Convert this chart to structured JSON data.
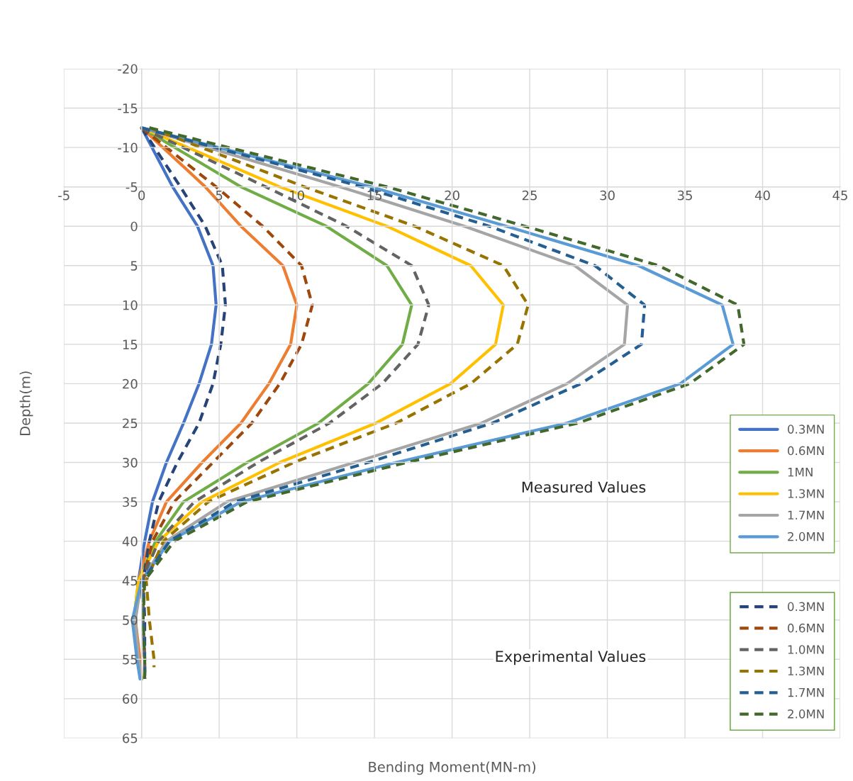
{
  "chart_data": {
    "type": "line",
    "xlabel": "Bending Moment(MN-m)",
    "ylabel": "Depth(m)",
    "xlim": [
      -5,
      45
    ],
    "xticks": [
      -5,
      0,
      5,
      10,
      15,
      20,
      25,
      30,
      35,
      40,
      45
    ],
    "ylim": [
      65,
      -20
    ],
    "yticks": [
      -20,
      -15,
      -10,
      -5,
      0,
      5,
      10,
      15,
      20,
      25,
      30,
      35,
      40,
      45,
      50,
      55,
      60,
      65
    ],
    "grid": true,
    "legend": "bottom right",
    "marker": "none",
    "annotations": [
      "Measured Values",
      "Experimental Values"
    ],
    "series": [
      {
        "name": "0.3MN",
        "color": "#4472c4",
        "line_style": "solid",
        "x": [
          0,
          2.0,
          3.6,
          4.6,
          4.8,
          4.5,
          3.7,
          2.7,
          1.6,
          0.7,
          0.2,
          -0.2,
          -0.4,
          -0.2,
          0
        ],
        "values": [
          -12.5,
          -5,
          0,
          5,
          10,
          15,
          20,
          25,
          30,
          35,
          40,
          45,
          50,
          55,
          57.5
        ]
      },
      {
        "name": "0.6MN",
        "color": "#ed7d31",
        "line_style": "solid",
        "x": [
          0,
          4.1,
          6.4,
          9.1,
          10.0,
          9.6,
          8.2,
          6.4,
          3.9,
          1.6,
          0.5,
          -0.2,
          -0.4,
          -0.1,
          0
        ],
        "values": [
          -12.5,
          -5,
          0,
          5,
          10,
          15,
          20,
          25,
          30,
          35,
          40,
          45,
          50,
          55,
          57.5
        ]
      },
      {
        "name": "1MN",
        "color": "#70ad47",
        "line_style": "solid",
        "x": [
          0,
          6.4,
          11.9,
          15.8,
          17.4,
          16.8,
          14.6,
          11.4,
          6.8,
          2.7,
          0.9,
          -0.2,
          -0.5,
          -0.2,
          0
        ],
        "values": [
          -12.5,
          -5,
          0,
          5,
          10,
          15,
          20,
          25,
          30,
          35,
          40,
          45,
          50,
          55,
          57.5
        ]
      },
      {
        "name": "1.3MN",
        "color": "#ffc000",
        "line_style": "solid",
        "x": [
          0,
          8.9,
          15.8,
          21.2,
          23.3,
          22.8,
          19.9,
          15.1,
          8.9,
          3.9,
          1.1,
          -0.2,
          -0.5,
          -0.3,
          0
        ],
        "values": [
          -12.5,
          -5,
          0,
          5,
          10,
          15,
          20,
          25,
          30,
          35,
          40,
          45,
          50,
          55,
          57.5
        ]
      },
      {
        "name": "1.7MN",
        "color": "#a5a5a5",
        "line_style": "solid",
        "x": [
          0,
          12.8,
          20.8,
          27.9,
          31.3,
          31.1,
          27.4,
          21.9,
          13.7,
          5.5,
          1.6,
          0,
          -0.4,
          -0.2,
          0
        ],
        "values": [
          -12.5,
          -5,
          0,
          5,
          10,
          15,
          20,
          25,
          30,
          35,
          40,
          45,
          50,
          55,
          57.5
        ]
      },
      {
        "name": "2.0MN",
        "color": "#5b9bd5",
        "line_style": "solid",
        "x": [
          0,
          14.8,
          23.5,
          32.0,
          37.4,
          38.1,
          34.7,
          27.4,
          16.4,
          6.4,
          1.8,
          0,
          -0.6,
          -0.3,
          -0.1
        ],
        "values": [
          -12.5,
          -5,
          0,
          5,
          10,
          15,
          20,
          25,
          30,
          35,
          40,
          45,
          50,
          55,
          57.5
        ]
      },
      {
        "name": "0.3MN",
        "color": "#264478",
        "line_style": "dashed",
        "x": [
          0,
          2.5,
          4.1,
          5.2,
          5.4,
          5.1,
          4.6,
          3.7,
          2.3,
          1.1,
          0.5,
          0.1,
          0.2,
          0.2,
          0.2
        ],
        "values": [
          -12.5,
          -5,
          0,
          5,
          10,
          15,
          20,
          25,
          30,
          35,
          40,
          45,
          50,
          55,
          57.5
        ]
      },
      {
        "name": "0.6MN",
        "color": "#9e480e",
        "line_style": "dashed",
        "x": [
          0,
          4.8,
          7.8,
          10.3,
          11.0,
          10.3,
          8.9,
          7.1,
          4.6,
          2.1,
          0.7,
          0.1,
          0.1,
          0.2,
          0.2
        ],
        "values": [
          -12.5,
          -5,
          0,
          5,
          10,
          15,
          20,
          25,
          30,
          35,
          40,
          45,
          50,
          55,
          57.5
        ]
      },
      {
        "name": "1.0MN",
        "color": "#636363",
        "line_style": "dashed",
        "x": [
          0,
          8.0,
          13.2,
          17.4,
          18.5,
          17.8,
          15.5,
          12.1,
          7.5,
          3.4,
          1.1,
          0,
          0.1,
          0.2,
          0.2
        ],
        "values": [
          -12.5,
          -5,
          0,
          5,
          10,
          15,
          20,
          25,
          30,
          35,
          40,
          45,
          50,
          55,
          57.5
        ]
      },
      {
        "name": "1.3MN",
        "color": "#997300",
        "line_style": "dashed",
        "x": [
          0.5,
          10.5,
          17.6,
          23.3,
          24.9,
          24.2,
          21.2,
          16.4,
          9.8,
          4.3,
          1.4,
          0.3,
          0.5,
          0.8,
          0.8
        ],
        "values": [
          -12.5,
          -5,
          0,
          5,
          10,
          15,
          20,
          25,
          30,
          35,
          40,
          45,
          50,
          55,
          56
        ]
      },
      {
        "name": "1.7MN",
        "color": "#255e91",
        "line_style": "dashed",
        "x": [
          0,
          14.2,
          22.4,
          29.2,
          32.4,
          32.2,
          28.3,
          22.6,
          14.6,
          6.0,
          1.8,
          0.1,
          0.1,
          0.2,
          0.2
        ],
        "values": [
          -12.5,
          -5,
          0,
          5,
          10,
          15,
          20,
          25,
          30,
          35,
          40,
          45,
          50,
          55,
          57.5
        ]
      },
      {
        "name": "2.0MN",
        "color": "#43682b",
        "line_style": "dashed",
        "x": [
          0.5,
          15.8,
          24.7,
          33.3,
          38.4,
          38.8,
          35.3,
          28.1,
          17.1,
          6.8,
          2.1,
          0.2,
          0.1,
          0.2,
          0.2
        ],
        "values": [
          -12.5,
          -5,
          0,
          5,
          10,
          15,
          20,
          25,
          30,
          35,
          40,
          45,
          50,
          55,
          57.5
        ]
      }
    ]
  }
}
